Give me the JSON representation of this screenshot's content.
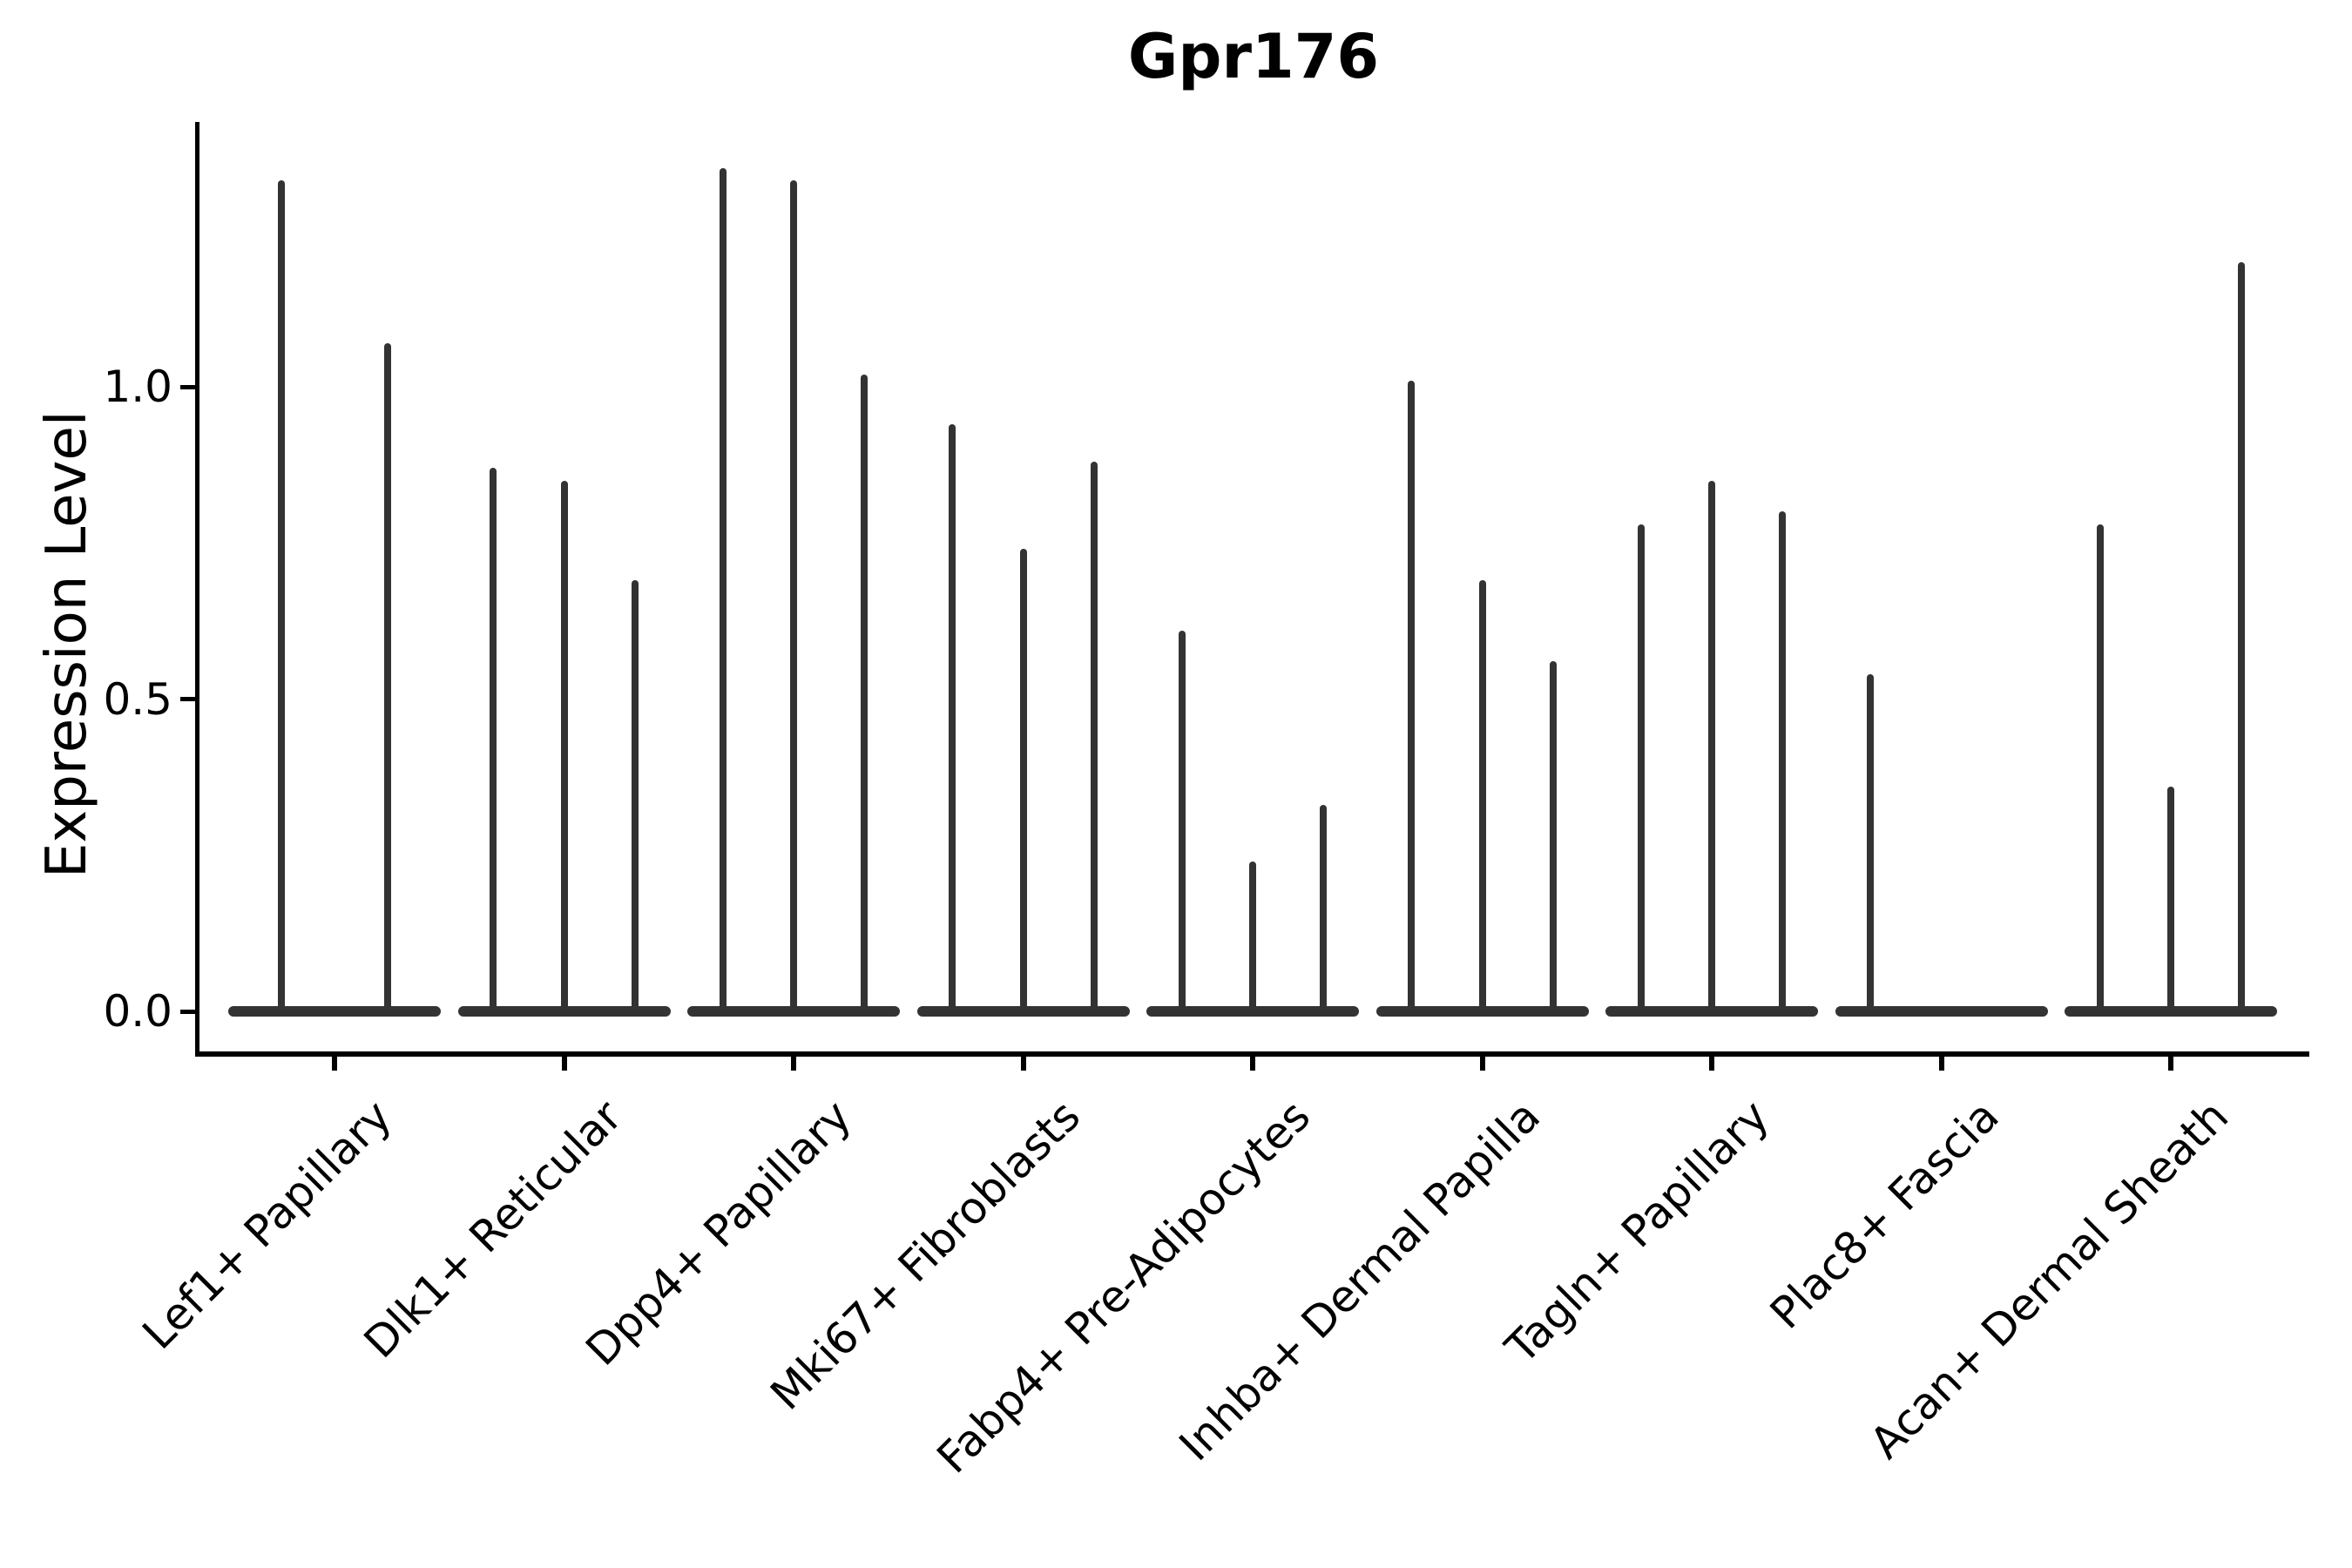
{
  "chart_data": {
    "type": "violin",
    "title": "Gpr176",
    "ylabel": "Expression Level",
    "xlabel": "",
    "ylim": [
      -0.07,
      1.42
    ],
    "grid": false,
    "legend": "none",
    "yticks": [
      {
        "value": 0.0,
        "label": "0.0"
      },
      {
        "value": 0.5,
        "label": "0.5"
      },
      {
        "value": 1.0,
        "label": "1.0"
      }
    ],
    "groups": [
      {
        "category": "Lef1+ Papillary",
        "violin_maxima": [
          1.33,
          1.07
        ]
      },
      {
        "category": "Dlk1+ Reticular",
        "violin_maxima": [
          0.87,
          0.85,
          0.69
        ]
      },
      {
        "category": "Dpp4+ Papillary",
        "violin_maxima": [
          1.35,
          1.33,
          1.02
        ]
      },
      {
        "category": "Mki67+ Fibroblasts",
        "violin_maxima": [
          0.94,
          0.74,
          0.88
        ]
      },
      {
        "category": "Fabp4+ Pre-Adipocytes",
        "violin_maxima": [
          0.61,
          0.24,
          0.33
        ]
      },
      {
        "category": "Inhba+ Dermal Papilla",
        "violin_maxima": [
          1.01,
          0.69,
          0.56
        ]
      },
      {
        "category": "Tagln+ Papillary",
        "violin_maxima": [
          0.78,
          0.85,
          0.8
        ]
      },
      {
        "category": "Plac8+ Fascia",
        "violin_maxima": [
          0.54,
          0,
          0
        ]
      },
      {
        "category": "Acan+ Dermal Sheath",
        "violin_maxima": [
          0.78,
          0.36,
          1.2
        ]
      }
    ],
    "colors": {
      "violin": "#333333",
      "axis": "#000000",
      "text": "#000000",
      "background": "#ffffff"
    }
  }
}
